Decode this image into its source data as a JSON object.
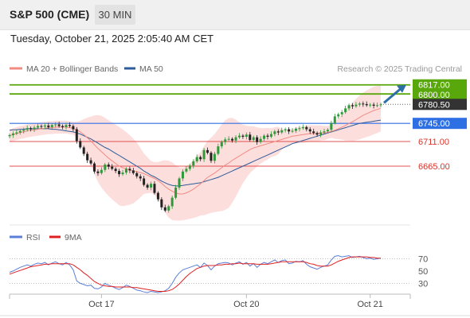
{
  "header": {
    "symbol": "S&P 500 (CME)",
    "timeframe": "30 MIN",
    "datetime": "Tuesday, October 21, 2025 2:05:40 AM CET"
  },
  "legend": {
    "ma20_label": "MA 20 + Bollinger Bands",
    "ma20_color": "#f28b82",
    "ma50_label": "MA 50",
    "ma50_color": "#2e5b9a",
    "source": "Research © 2025 Trading Central"
  },
  "rsi_legend": {
    "rsi_label": "RSI",
    "rsi_color": "#5b7fd6",
    "ma_label": "9MA",
    "ma_color": "#e02020"
  },
  "chart_data": [
    {
      "type": "candlestick",
      "x_ticks": [
        "Oct 17",
        "Oct 20",
        "Oct 21"
      ],
      "levels": [
        {
          "value": 6817.0,
          "label": "6817.00",
          "kind": "resistance",
          "color": "#58a70b"
        },
        {
          "value": 6800.0,
          "label": "6800.00",
          "kind": "resistance",
          "color": "#58a70b"
        },
        {
          "value": 6780.5,
          "label": "6780.50",
          "kind": "last price",
          "color": "#333333"
        },
        {
          "value": 6745.0,
          "label": "6745.00",
          "kind": "pivot",
          "color": "#2f6fe4"
        },
        {
          "value": 6711.0,
          "label": "6711.00",
          "kind": "support",
          "color": "#e05050"
        },
        {
          "value": 6665.0,
          "label": "6665.00",
          "kind": "support",
          "color": "#e05050"
        }
      ],
      "ylim": [
        6555,
        6830
      ],
      "close": [
        6723,
        6726,
        6728,
        6731,
        6733,
        6736,
        6734,
        6737,
        6740,
        6739,
        6741,
        6738,
        6742,
        6743,
        6740,
        6738,
        6742,
        6740,
        6734,
        6712,
        6700,
        6688,
        6676,
        6670,
        6655,
        6652,
        6658,
        6668,
        6664,
        6660,
        6656,
        6650,
        6653,
        6660,
        6657,
        6652,
        6646,
        6642,
        6630,
        6625,
        6632,
        6615,
        6603,
        6588,
        6582,
        6590,
        6606,
        6625,
        6642,
        6655,
        6660,
        6666,
        6674,
        6682,
        6678,
        6695,
        6690,
        6675,
        6688,
        6702,
        6710,
        6715,
        6716,
        6713,
        6719,
        6722,
        6720,
        6724,
        6714,
        6719,
        6710,
        6716,
        6722,
        6720,
        6725,
        6730,
        6728,
        6732,
        6734,
        6730,
        6731,
        6735,
        6736,
        6738,
        6734,
        6730,
        6727,
        6724,
        6728,
        6730,
        6733,
        6746,
        6758,
        6762,
        6766,
        6773,
        6779,
        6777,
        6780,
        6782,
        6781,
        6779,
        6780,
        6778,
        6779,
        6780.5
      ],
      "ma20": [
        6722,
        6724,
        6726,
        6728,
        6729,
        6731,
        6732,
        6733,
        6734,
        6735,
        6736,
        6737,
        6737,
        6738,
        6738,
        6738,
        6738,
        6737,
        6736,
        6733,
        6729,
        6724,
        6718,
        6712,
        6705,
        6698,
        6692,
        6686,
        6680,
        6675,
        6670,
        6665,
        6662,
        6660,
        6658,
        6656,
        6655,
        6653,
        6651,
        6648,
        6645,
        6642,
        6638,
        6633,
        6627,
        6622,
        6618,
        6615,
        6613,
        6613,
        6615,
        6618,
        6622,
        6627,
        6632,
        6638,
        6644,
        6648,
        6652,
        6657,
        6662,
        6667,
        6671,
        6676,
        6680,
        6684,
        6688,
        6692,
        6696,
        6699,
        6701,
        6703,
        6705,
        6707,
        6709,
        6711,
        6713,
        6715,
        6717,
        6719,
        6721,
        6722,
        6723,
        6724,
        6725,
        6726,
        6726,
        6726,
        6727,
        6727,
        6728,
        6730,
        6732,
        6735,
        6738,
        6741,
        6745,
        6748,
        6752,
        6756,
        6760,
        6763,
        6766,
        6769,
        6771,
        6773
      ],
      "ma50": [
        6732,
        6733,
        6733,
        6734,
        6734,
        6735,
        6735,
        6735,
        6735,
        6735,
        6735,
        6735,
        6734,
        6734,
        6733,
        6732,
        6731,
        6730,
        6729,
        6727,
        6725,
        6722,
        6719,
        6716,
        6712,
        6708,
        6704,
        6700,
        6697,
        6693,
        6689,
        6685,
        6681,
        6677,
        6673,
        6669,
        6665,
        6661,
        6656,
        6652,
        6648,
        6645,
        6641,
        6637,
        6634,
        6631,
        6629,
        6628,
        6628,
        6629,
        6630,
        6631,
        6632,
        6633,
        6634,
        6636,
        6638,
        6640,
        6642,
        6644,
        6647,
        6650,
        6653,
        6656,
        6659,
        6662,
        6665,
        6668,
        6671,
        6674,
        6677,
        6680,
        6683,
        6686,
        6689,
        6692,
        6695,
        6698,
        6701,
        6704,
        6707,
        6709,
        6711,
        6713,
        6715,
        6717,
        6719,
        6721,
        6723,
        6725,
        6727,
        6729,
        6731,
        6733,
        6735,
        6737,
        6739,
        6741,
        6743,
        6745,
        6746,
        6747,
        6748,
        6749,
        6750,
        6751
      ]
    },
    {
      "type": "line",
      "title": "RSI",
      "y_ticks": [
        70,
        50,
        30
      ],
      "ylim": [
        15,
        90
      ],
      "rsi": [
        48,
        50,
        53,
        56,
        58,
        60,
        58,
        61,
        63,
        62,
        64,
        60,
        63,
        65,
        62,
        60,
        64,
        60,
        52,
        34,
        30,
        28,
        26,
        27,
        22,
        21,
        24,
        30,
        27,
        25,
        22,
        20,
        23,
        27,
        25,
        22,
        19,
        18,
        16,
        15,
        17,
        16,
        15,
        16,
        18,
        22,
        30,
        40,
        47,
        52,
        54,
        56,
        58,
        60,
        56,
        63,
        59,
        52,
        58,
        62,
        63,
        64,
        63,
        60,
        63,
        65,
        61,
        64,
        58,
        62,
        56,
        61,
        64,
        62,
        65,
        68,
        64,
        67,
        68,
        62,
        63,
        66,
        65,
        67,
        61,
        57,
        55,
        53,
        56,
        58,
        60,
        68,
        74,
        75,
        73,
        74,
        75,
        72,
        73,
        74,
        72,
        70,
        71,
        69,
        70,
        71
      ],
      "ma9": [
        45,
        47,
        49,
        51,
        53,
        55,
        57,
        58,
        59,
        60,
        61,
        61,
        62,
        62,
        62,
        62,
        62,
        62,
        60,
        56,
        52,
        47,
        43,
        38,
        33,
        30,
        27,
        26,
        25,
        25,
        24,
        24,
        24,
        24,
        24,
        23,
        23,
        22,
        21,
        20,
        19,
        18,
        17,
        17,
        17,
        18,
        20,
        24,
        29,
        35,
        41,
        46,
        50,
        54,
        56,
        58,
        59,
        59,
        59,
        60,
        60,
        61,
        61,
        62,
        62,
        63,
        62,
        62,
        62,
        62,
        61,
        61,
        61,
        61,
        62,
        63,
        64,
        65,
        65,
        65,
        65,
        65,
        65,
        65,
        64,
        62,
        61,
        59,
        58,
        58,
        58,
        60,
        63,
        66,
        68,
        70,
        72,
        73,
        73,
        73,
        73,
        73,
        72,
        72,
        71,
        71
      ]
    }
  ]
}
